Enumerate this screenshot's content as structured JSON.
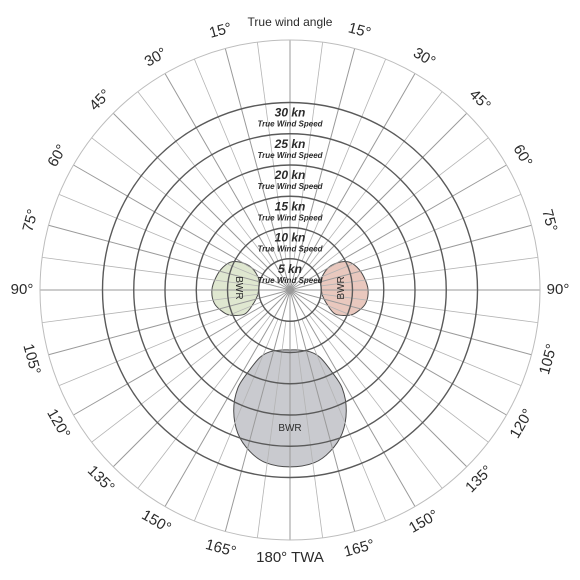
{
  "chart_data": {
    "type": "polar",
    "angle_axis": {
      "title": "True wind angle",
      "range_deg": [
        0,
        180
      ],
      "spoke_step_deg": 7.5,
      "ticks": [
        {
          "angle": 15,
          "label": "15°"
        },
        {
          "angle": 30,
          "label": "30°"
        },
        {
          "angle": 45,
          "label": "45°"
        },
        {
          "angle": 60,
          "label": "60°"
        },
        {
          "angle": 75,
          "label": "75°"
        },
        {
          "angle": 90,
          "label": "90°"
        },
        {
          "angle": 105,
          "label": "105°"
        },
        {
          "angle": 120,
          "label": "120°"
        },
        {
          "angle": 135,
          "label": "135°"
        },
        {
          "angle": 150,
          "label": "150°"
        },
        {
          "angle": 165,
          "label": "165°"
        },
        {
          "angle": 180,
          "label": "180° TWA"
        }
      ]
    },
    "radial_axis": {
      "unit": "kn",
      "caption": "True Wind Speed",
      "range": [
        0,
        40
      ],
      "rings": [
        {
          "value": 5,
          "label": "5 kn"
        },
        {
          "value": 10,
          "label": "10 kn"
        },
        {
          "value": 15,
          "label": "15 kn"
        },
        {
          "value": 20,
          "label": "20 kn"
        },
        {
          "value": 25,
          "label": "25 kn"
        },
        {
          "value": 30,
          "label": "30 kn"
        }
      ],
      "outer_ring": 40
    },
    "regions": [
      {
        "label": "BWR",
        "color": "#dfe7d0",
        "side": "port",
        "points": [
          [
            68,
            5.5
          ],
          [
            60,
            7
          ],
          [
            60,
            8.6
          ],
          [
            64,
            10.3
          ],
          [
            71,
            11.3
          ],
          [
            80,
            12
          ],
          [
            90,
            12.5
          ],
          [
            100,
            12.3
          ],
          [
            108,
            11.3
          ],
          [
            113,
            10.3
          ],
          [
            118,
            8.2
          ],
          [
            110,
            6.2
          ],
          [
            100,
            5.3
          ],
          [
            88,
            5
          ],
          [
            76,
            5.1
          ]
        ]
      },
      {
        "label": "BWR",
        "color": "#e9c8be",
        "side": "starboard",
        "points": [
          [
            68,
            5.5
          ],
          [
            60,
            7
          ],
          [
            60,
            8.6
          ],
          [
            64,
            10.3
          ],
          [
            71,
            11.3
          ],
          [
            80,
            12
          ],
          [
            90,
            12.5
          ],
          [
            100,
            12.3
          ],
          [
            108,
            11.3
          ],
          [
            113,
            10.3
          ],
          [
            118,
            8.2
          ],
          [
            110,
            6.2
          ],
          [
            100,
            5.3
          ],
          [
            88,
            5
          ],
          [
            76,
            5.1
          ]
        ]
      },
      {
        "label": "BWR",
        "color": "#c9cacf",
        "side": "centre",
        "points": [
          [
            180,
            9.6
          ],
          [
            172,
            9.7
          ],
          [
            162,
            10.4
          ],
          [
            156,
            11.8
          ],
          [
            153,
            14.6
          ],
          [
            152,
            17.8
          ],
          [
            155,
            21.3
          ],
          [
            160,
            24.4
          ],
          [
            166,
            26.6
          ],
          [
            172,
            27.9
          ],
          [
            180,
            28.3
          ],
          [
            188,
            27.9
          ],
          [
            194,
            26.6
          ],
          [
            200,
            24.4
          ],
          [
            205,
            21.3
          ],
          [
            208,
            17.8
          ],
          [
            207,
            14.6
          ],
          [
            204,
            11.8
          ],
          [
            198,
            10.4
          ],
          [
            188,
            9.7
          ]
        ]
      }
    ]
  }
}
